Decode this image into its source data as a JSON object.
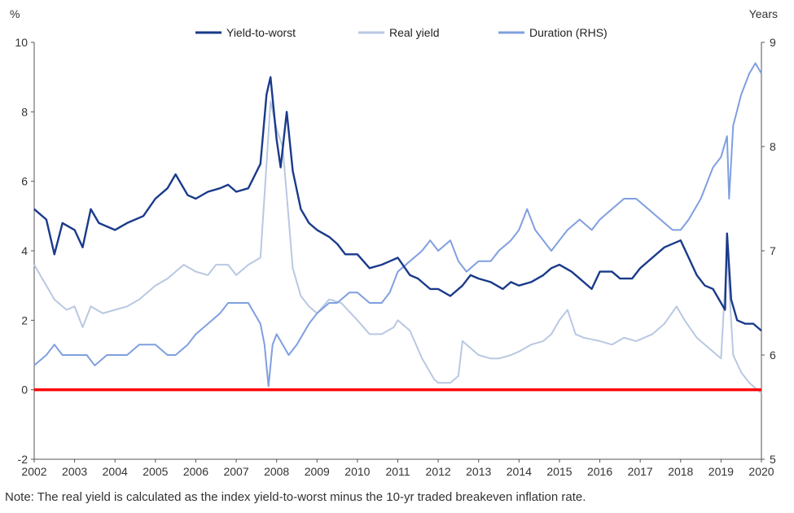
{
  "chart_data": {
    "type": "line",
    "title": "",
    "left_axis_unit": "%",
    "right_axis_unit": "Years",
    "xlim": [
      2002,
      2020
    ],
    "ylim": [
      -2,
      10
    ],
    "y2lim": [
      5,
      9
    ],
    "x_ticks": [
      "2002",
      "2003",
      "2004",
      "2005",
      "2006",
      "2007",
      "2008",
      "2009",
      "2010",
      "2011",
      "2012",
      "2013",
      "2014",
      "2015",
      "2016",
      "2017",
      "2018",
      "2019",
      "2020"
    ],
    "y_ticks": [
      "-2",
      "0",
      "2",
      "4",
      "6",
      "8",
      "10"
    ],
    "y2_ticks": [
      "5",
      "6",
      "7",
      "8",
      "9"
    ],
    "grid": false,
    "legend_position": "top",
    "reference_line": {
      "y": 0,
      "color": "#ff0000"
    },
    "series": [
      {
        "name": "Yield-to-worst",
        "axis": "left",
        "color": "#1a3a8a",
        "points": [
          [
            2002.0,
            5.2
          ],
          [
            2002.3,
            4.9
          ],
          [
            2002.5,
            3.9
          ],
          [
            2002.7,
            4.8
          ],
          [
            2003.0,
            4.6
          ],
          [
            2003.2,
            4.1
          ],
          [
            2003.4,
            5.2
          ],
          [
            2003.6,
            4.8
          ],
          [
            2004.0,
            4.6
          ],
          [
            2004.3,
            4.8
          ],
          [
            2004.7,
            5.0
          ],
          [
            2005.0,
            5.5
          ],
          [
            2005.3,
            5.8
          ],
          [
            2005.5,
            6.2
          ],
          [
            2005.8,
            5.6
          ],
          [
            2006.0,
            5.5
          ],
          [
            2006.3,
            5.7
          ],
          [
            2006.6,
            5.8
          ],
          [
            2006.8,
            5.9
          ],
          [
            2007.0,
            5.7
          ],
          [
            2007.3,
            5.8
          ],
          [
            2007.6,
            6.5
          ],
          [
            2007.75,
            8.5
          ],
          [
            2007.85,
            9.0
          ],
          [
            2008.0,
            7.2
          ],
          [
            2008.1,
            6.4
          ],
          [
            2008.25,
            8.0
          ],
          [
            2008.4,
            6.3
          ],
          [
            2008.6,
            5.2
          ],
          [
            2008.8,
            4.8
          ],
          [
            2009.0,
            4.6
          ],
          [
            2009.3,
            4.4
          ],
          [
            2009.5,
            4.2
          ],
          [
            2009.7,
            3.9
          ],
          [
            2010.0,
            3.9
          ],
          [
            2010.3,
            3.5
          ],
          [
            2010.6,
            3.6
          ],
          [
            2010.8,
            3.7
          ],
          [
            2011.0,
            3.8
          ],
          [
            2011.3,
            3.3
          ],
          [
            2011.5,
            3.2
          ],
          [
            2011.8,
            2.9
          ],
          [
            2012.0,
            2.9
          ],
          [
            2012.3,
            2.7
          ],
          [
            2012.6,
            3.0
          ],
          [
            2012.8,
            3.3
          ],
          [
            2013.0,
            3.2
          ],
          [
            2013.3,
            3.1
          ],
          [
            2013.6,
            2.9
          ],
          [
            2013.8,
            3.1
          ],
          [
            2014.0,
            3.0
          ],
          [
            2014.3,
            3.1
          ],
          [
            2014.6,
            3.3
          ],
          [
            2014.8,
            3.5
          ],
          [
            2015.0,
            3.6
          ],
          [
            2015.3,
            3.4
          ],
          [
            2015.5,
            3.2
          ],
          [
            2015.8,
            2.9
          ],
          [
            2016.0,
            3.4
          ],
          [
            2016.3,
            3.4
          ],
          [
            2016.5,
            3.2
          ],
          [
            2016.8,
            3.2
          ],
          [
            2017.0,
            3.5
          ],
          [
            2017.3,
            3.8
          ],
          [
            2017.6,
            4.1
          ],
          [
            2018.0,
            4.3
          ],
          [
            2018.2,
            3.8
          ],
          [
            2018.4,
            3.3
          ],
          [
            2018.6,
            3.0
          ],
          [
            2018.8,
            2.9
          ],
          [
            2019.0,
            2.5
          ],
          [
            2019.1,
            2.3
          ],
          [
            2019.15,
            4.5
          ],
          [
            2019.25,
            2.6
          ],
          [
            2019.4,
            2.0
          ],
          [
            2019.6,
            1.9
          ],
          [
            2019.8,
            1.9
          ],
          [
            2020.0,
            1.7
          ]
        ]
      },
      {
        "name": "Real yield",
        "axis": "left",
        "color": "#b9c8e2",
        "points": [
          [
            2002.0,
            3.6
          ],
          [
            2002.2,
            3.2
          ],
          [
            2002.5,
            2.6
          ],
          [
            2002.8,
            2.3
          ],
          [
            2003.0,
            2.4
          ],
          [
            2003.2,
            1.8
          ],
          [
            2003.4,
            2.4
          ],
          [
            2003.7,
            2.2
          ],
          [
            2004.0,
            2.3
          ],
          [
            2004.3,
            2.4
          ],
          [
            2004.6,
            2.6
          ],
          [
            2004.8,
            2.8
          ],
          [
            2005.0,
            3.0
          ],
          [
            2005.3,
            3.2
          ],
          [
            2005.5,
            3.4
          ],
          [
            2005.7,
            3.6
          ],
          [
            2006.0,
            3.4
          ],
          [
            2006.3,
            3.3
          ],
          [
            2006.5,
            3.6
          ],
          [
            2006.8,
            3.6
          ],
          [
            2007.0,
            3.3
          ],
          [
            2007.3,
            3.6
          ],
          [
            2007.6,
            3.8
          ],
          [
            2007.75,
            6.5
          ],
          [
            2007.85,
            8.3
          ],
          [
            2008.0,
            7.5
          ],
          [
            2008.15,
            7.0
          ],
          [
            2008.25,
            5.6
          ],
          [
            2008.4,
            3.5
          ],
          [
            2008.6,
            2.7
          ],
          [
            2008.8,
            2.4
          ],
          [
            2009.0,
            2.2
          ],
          [
            2009.3,
            2.6
          ],
          [
            2009.6,
            2.5
          ],
          [
            2010.0,
            2.0
          ],
          [
            2010.3,
            1.6
          ],
          [
            2010.6,
            1.6
          ],
          [
            2010.9,
            1.8
          ],
          [
            2011.0,
            2.0
          ],
          [
            2011.3,
            1.7
          ],
          [
            2011.6,
            0.9
          ],
          [
            2011.9,
            0.3
          ],
          [
            2012.0,
            0.2
          ],
          [
            2012.3,
            0.2
          ],
          [
            2012.5,
            0.4
          ],
          [
            2012.6,
            1.4
          ],
          [
            2012.8,
            1.2
          ],
          [
            2013.0,
            1.0
          ],
          [
            2013.3,
            0.9
          ],
          [
            2013.5,
            0.9
          ],
          [
            2013.8,
            1.0
          ],
          [
            2014.0,
            1.1
          ],
          [
            2014.3,
            1.3
          ],
          [
            2014.6,
            1.4
          ],
          [
            2014.8,
            1.6
          ],
          [
            2015.0,
            2.0
          ],
          [
            2015.2,
            2.3
          ],
          [
            2015.4,
            1.6
          ],
          [
            2015.6,
            1.5
          ],
          [
            2016.0,
            1.4
          ],
          [
            2016.3,
            1.3
          ],
          [
            2016.6,
            1.5
          ],
          [
            2016.9,
            1.4
          ],
          [
            2017.3,
            1.6
          ],
          [
            2017.6,
            1.9
          ],
          [
            2017.9,
            2.4
          ],
          [
            2018.1,
            2.0
          ],
          [
            2018.4,
            1.5
          ],
          [
            2018.7,
            1.2
          ],
          [
            2019.0,
            0.9
          ],
          [
            2019.15,
            4.0
          ],
          [
            2019.3,
            1.0
          ],
          [
            2019.5,
            0.5
          ],
          [
            2019.7,
            0.2
          ],
          [
            2020.0,
            -0.1
          ]
        ]
      },
      {
        "name": "Duration (RHS)",
        "axis": "right",
        "color": "#7f9fe0",
        "points": [
          [
            2002.0,
            5.9
          ],
          [
            2002.3,
            6.0
          ],
          [
            2002.5,
            6.1
          ],
          [
            2002.7,
            6.0
          ],
          [
            2003.0,
            6.0
          ],
          [
            2003.3,
            6.0
          ],
          [
            2003.5,
            5.9
          ],
          [
            2003.8,
            6.0
          ],
          [
            2004.0,
            6.0
          ],
          [
            2004.3,
            6.0
          ],
          [
            2004.6,
            6.1
          ],
          [
            2004.8,
            6.1
          ],
          [
            2005.0,
            6.1
          ],
          [
            2005.3,
            6.0
          ],
          [
            2005.5,
            6.0
          ],
          [
            2005.8,
            6.1
          ],
          [
            2006.0,
            6.2
          ],
          [
            2006.3,
            6.3
          ],
          [
            2006.6,
            6.4
          ],
          [
            2006.8,
            6.5
          ],
          [
            2007.0,
            6.5
          ],
          [
            2007.3,
            6.5
          ],
          [
            2007.6,
            6.3
          ],
          [
            2007.7,
            6.1
          ],
          [
            2007.8,
            5.7
          ],
          [
            2007.9,
            6.1
          ],
          [
            2008.0,
            6.2
          ],
          [
            2008.3,
            6.0
          ],
          [
            2008.5,
            6.1
          ],
          [
            2008.8,
            6.3
          ],
          [
            2009.0,
            6.4
          ],
          [
            2009.3,
            6.5
          ],
          [
            2009.5,
            6.5
          ],
          [
            2009.8,
            6.6
          ],
          [
            2010.0,
            6.6
          ],
          [
            2010.3,
            6.5
          ],
          [
            2010.6,
            6.5
          ],
          [
            2010.8,
            6.6
          ],
          [
            2011.0,
            6.8
          ],
          [
            2011.3,
            6.9
          ],
          [
            2011.6,
            7.0
          ],
          [
            2011.8,
            7.1
          ],
          [
            2012.0,
            7.0
          ],
          [
            2012.3,
            7.1
          ],
          [
            2012.5,
            6.9
          ],
          [
            2012.7,
            6.8
          ],
          [
            2013.0,
            6.9
          ],
          [
            2013.3,
            6.9
          ],
          [
            2013.5,
            7.0
          ],
          [
            2013.8,
            7.1
          ],
          [
            2014.0,
            7.2
          ],
          [
            2014.2,
            7.4
          ],
          [
            2014.4,
            7.2
          ],
          [
            2014.6,
            7.1
          ],
          [
            2014.8,
            7.0
          ],
          [
            2015.0,
            7.1
          ],
          [
            2015.2,
            7.2
          ],
          [
            2015.5,
            7.3
          ],
          [
            2015.8,
            7.2
          ],
          [
            2016.0,
            7.3
          ],
          [
            2016.3,
            7.4
          ],
          [
            2016.6,
            7.5
          ],
          [
            2016.9,
            7.5
          ],
          [
            2017.2,
            7.4
          ],
          [
            2017.5,
            7.3
          ],
          [
            2017.8,
            7.2
          ],
          [
            2018.0,
            7.2
          ],
          [
            2018.2,
            7.3
          ],
          [
            2018.5,
            7.5
          ],
          [
            2018.8,
            7.8
          ],
          [
            2019.0,
            7.9
          ],
          [
            2019.15,
            8.1
          ],
          [
            2019.2,
            7.5
          ],
          [
            2019.3,
            8.2
          ],
          [
            2019.5,
            8.5
          ],
          [
            2019.7,
            8.7
          ],
          [
            2019.85,
            8.8
          ],
          [
            2020.0,
            8.7
          ]
        ]
      }
    ]
  },
  "note": "Note: The real yield is calculated as the index yield-to-worst minus the 10-yr traded breakeven inflation rate."
}
